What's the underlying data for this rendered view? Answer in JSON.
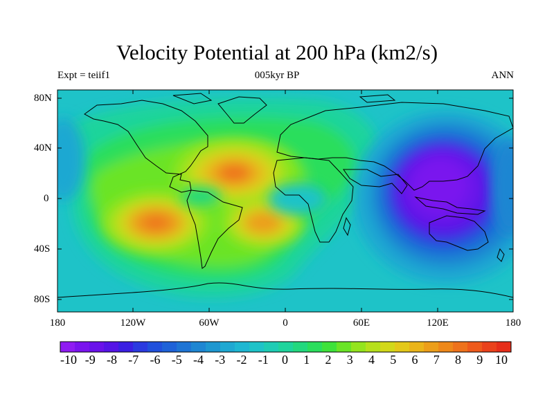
{
  "header": {
    "title": "Velocity Potential at 200 hPa (km2/s)",
    "left_subtitle": "Expt = teiif1",
    "center_subtitle": "005kyr BP",
    "right_subtitle": "ANN"
  },
  "map": {
    "lat_labels": [
      "80N",
      "40N",
      "0",
      "40S",
      "80S"
    ],
    "lon_labels": [
      "180",
      "120W",
      "60W",
      "0",
      "60E",
      "120E",
      "180"
    ],
    "background_color": "#1ec3c8",
    "coastline_color": "#000000"
  },
  "colorbar": {
    "labels": [
      "-10",
      "-9",
      "-8",
      "-7",
      "-6",
      "-5",
      "-4",
      "-3",
      "-2",
      "-1",
      "0",
      "1",
      "2",
      "3",
      "4",
      "5",
      "6",
      "7",
      "8",
      "9",
      "10"
    ],
    "colors": [
      "#8f1cf2",
      "#7a14ee",
      "#6a12ea",
      "#5514e6",
      "#3a1fe2",
      "#2a3ae0",
      "#2050dc",
      "#1e62d8",
      "#1e74d4",
      "#1e86d2",
      "#1e97d0",
      "#1ea8d2",
      "#1eb7d2",
      "#1ec3c8",
      "#1eccb4",
      "#1ed49c",
      "#22d87e",
      "#2ade5c",
      "#3ee23a",
      "#6ae426",
      "#94e41e",
      "#b6e01c",
      "#d2d81a",
      "#e4c81a",
      "#eab41a",
      "#ec9e1a",
      "#ee881a",
      "#ee721c",
      "#ee5a1c",
      "#ea421c",
      "#e62e1a"
    ]
  },
  "chart_data": {
    "type": "heatmap",
    "title": "Velocity Potential at 200 hPa (km2/s)",
    "subtitle_left": "Expt = teiif1",
    "subtitle_center": "005kyr BP",
    "subtitle_right": "ANN",
    "x_ticks": [
      "180",
      "120W",
      "60W",
      "0",
      "60E",
      "120E",
      "180"
    ],
    "y_ticks": [
      "80N",
      "40N",
      "0",
      "40S",
      "80S"
    ],
    "xlim": [
      -180,
      180
    ],
    "ylim": [
      -90,
      90
    ],
    "units": "km2/s",
    "color_levels": [
      -10,
      -9,
      -8,
      -7,
      -6,
      -5,
      -4,
      -3,
      -2,
      -1,
      0,
      1,
      2,
      3,
      4,
      5,
      6,
      7,
      8,
      9,
      10
    ],
    "features": [
      {
        "lon": -38,
        "lat": 20,
        "value": 7.5
      },
      {
        "lon": -100,
        "lat": -20,
        "value": 7.0
      },
      {
        "lon": -20,
        "lat": -22,
        "value": 6.5
      },
      {
        "lon": 135,
        "lat": 10,
        "value": -9.0
      },
      {
        "lon": 10,
        "lat": 0,
        "value": 1.5
      },
      {
        "lon": -80,
        "lat": 0,
        "value": 2.0
      }
    ]
  }
}
